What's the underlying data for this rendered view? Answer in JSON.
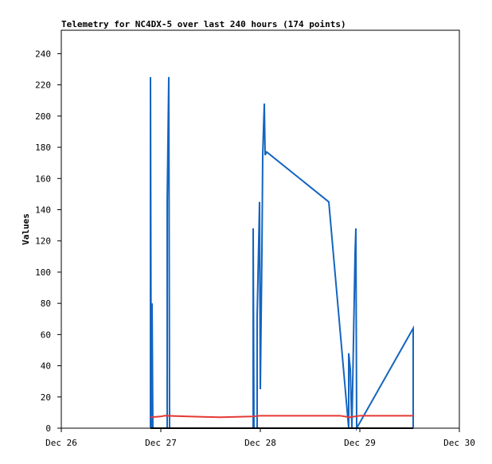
{
  "chart_data": {
    "type": "line",
    "title": "Telemetry for NC4DX-5 over last 240 hours (174 points)",
    "y_label": "Values",
    "xlim": [
      0,
      4
    ],
    "xticks": [
      {
        "value": 0,
        "label": "Dec 26"
      },
      {
        "value": 1,
        "label": "Dec 27"
      },
      {
        "value": 2,
        "label": "Dec 28"
      },
      {
        "value": 3,
        "label": "Dec 29"
      },
      {
        "value": 4,
        "label": "Dec 30"
      }
    ],
    "ylim": [
      0,
      255
    ],
    "yticks": [
      0,
      20,
      40,
      60,
      80,
      100,
      120,
      140,
      160,
      180,
      200,
      220,
      240
    ],
    "series": [
      {
        "color": "#1565c0",
        "x": [
          0.896,
          0.896,
          0.904,
          0.912,
          0.92,
          1.064,
          1.064,
          1.08,
          1.088,
          1.928,
          1.928,
          1.936,
          1.968,
          1.968,
          1.984,
          1.992,
          2.0,
          2.016,
          2.024,
          2.032,
          2.04,
          2.048,
          2.064,
          2.688,
          2.888,
          2.888,
          2.904,
          2.92,
          2.952,
          2.96,
          2.968,
          3.536,
          3.536
        ],
        "values": [
          0,
          225,
          0,
          80,
          0,
          0,
          145,
          225,
          0,
          0,
          128,
          0,
          0,
          72,
          120,
          145,
          25,
          113,
          175,
          192,
          208,
          175,
          177,
          145,
          0,
          48,
          38,
          0,
          112,
          128,
          0,
          64,
          0
        ]
      },
      {
        "color": "#e53935",
        "x": [
          0.896,
          1.0,
          1.04,
          1.28,
          1.6,
          1.92,
          2.0,
          2.4,
          2.8,
          2.9,
          3.0,
          3.536
        ],
        "values": [
          7,
          7.5,
          8,
          7.5,
          7,
          7.5,
          8,
          8,
          8,
          7,
          8,
          8
        ]
      },
      {
        "color": "#000000",
        "x": [
          0.896,
          3.536
        ],
        "values": [
          0,
          0
        ]
      }
    ]
  }
}
